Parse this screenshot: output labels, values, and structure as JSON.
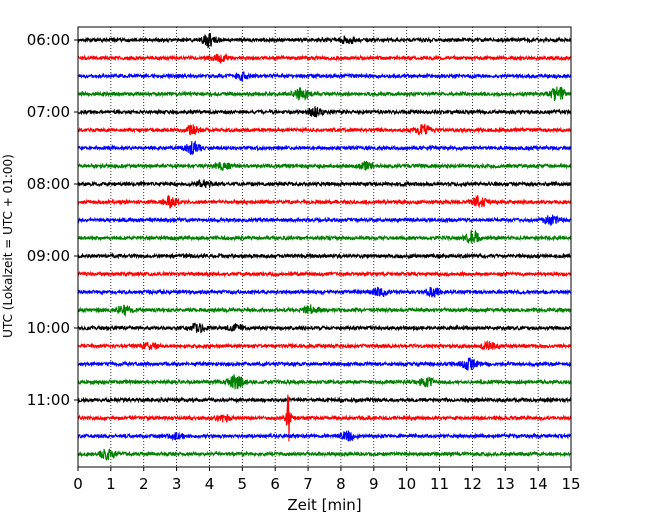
{
  "chart_data": {
    "type": "line",
    "subtype": "helicorder",
    "xlabel": "Zeit  [min]",
    "ylabel": "UTC (Lokalzeit = UTC + 01:00)",
    "xlim": [
      0,
      15
    ],
    "x_ticks": [
      "0",
      "1",
      "2",
      "3",
      "4",
      "5",
      "6",
      "7",
      "8",
      "9",
      "10",
      "11",
      "12",
      "13",
      "14",
      "15"
    ],
    "y_ticks": [
      "06:00",
      "07:00",
      "08:00",
      "09:00",
      "10:00",
      "11:00"
    ],
    "grid": {
      "vertical": true,
      "style": "dotted"
    },
    "line_colors": [
      "#000000",
      "#ff0000",
      "#0000ff",
      "#008000"
    ],
    "traces": [
      {
        "start": "06:00",
        "events": [
          {
            "t": 4.0,
            "amp": 0.8
          },
          {
            "t": 8.2,
            "amp": 0.5
          }
        ]
      },
      {
        "start": "06:15",
        "events": [
          {
            "t": 4.3,
            "amp": 0.6
          }
        ]
      },
      {
        "start": "06:30",
        "events": [
          {
            "t": 5.0,
            "amp": 0.5
          }
        ]
      },
      {
        "start": "06:45",
        "events": [
          {
            "t": 6.8,
            "amp": 0.8
          },
          {
            "t": 14.6,
            "amp": 1.0
          }
        ]
      },
      {
        "start": "07:00",
        "events": [
          {
            "t": 7.2,
            "amp": 0.6
          }
        ]
      },
      {
        "start": "07:15",
        "events": [
          {
            "t": 3.5,
            "amp": 0.6
          },
          {
            "t": 10.5,
            "amp": 0.7
          }
        ]
      },
      {
        "start": "07:30",
        "events": [
          {
            "t": 3.5,
            "amp": 0.8
          }
        ]
      },
      {
        "start": "07:45",
        "events": [
          {
            "t": 4.4,
            "amp": 0.5
          },
          {
            "t": 8.8,
            "amp": 0.5
          }
        ]
      },
      {
        "start": "08:00",
        "events": [
          {
            "t": 3.8,
            "amp": 0.5
          }
        ]
      },
      {
        "start": "08:15",
        "events": [
          {
            "t": 2.8,
            "amp": 0.7
          },
          {
            "t": 12.2,
            "amp": 0.8
          }
        ]
      },
      {
        "start": "08:30",
        "events": [
          {
            "t": 14.4,
            "amp": 0.6
          }
        ]
      },
      {
        "start": "08:45",
        "events": [
          {
            "t": 12.0,
            "amp": 0.9
          }
        ]
      },
      {
        "start": "09:00",
        "events": []
      },
      {
        "start": "09:15",
        "events": []
      },
      {
        "start": "09:30",
        "events": [
          {
            "t": 9.2,
            "amp": 0.6
          },
          {
            "t": 10.8,
            "amp": 0.6
          }
        ]
      },
      {
        "start": "09:45",
        "events": [
          {
            "t": 1.4,
            "amp": 0.6
          },
          {
            "t": 7.1,
            "amp": 0.6
          }
        ]
      },
      {
        "start": "10:00",
        "events": [
          {
            "t": 3.6,
            "amp": 0.6
          },
          {
            "t": 4.8,
            "amp": 0.5
          }
        ]
      },
      {
        "start": "10:15",
        "events": [
          {
            "t": 2.2,
            "amp": 0.5
          },
          {
            "t": 12.5,
            "amp": 0.5
          }
        ]
      },
      {
        "start": "10:30",
        "events": [
          {
            "t": 11.9,
            "amp": 0.8
          }
        ]
      },
      {
        "start": "10:45",
        "events": [
          {
            "t": 4.8,
            "amp": 1.0
          },
          {
            "t": 10.6,
            "amp": 0.7
          }
        ]
      },
      {
        "start": "11:00",
        "events": []
      },
      {
        "start": "11:15",
        "events": [
          {
            "t": 6.4,
            "amp": 3.5
          },
          {
            "t": 4.4,
            "amp": 0.5
          }
        ]
      },
      {
        "start": "11:30",
        "events": [
          {
            "t": 8.2,
            "amp": 0.6
          },
          {
            "t": 3.0,
            "amp": 0.4
          }
        ]
      },
      {
        "start": "11:45",
        "events": [
          {
            "t": 0.9,
            "amp": 0.7
          }
        ]
      }
    ]
  }
}
